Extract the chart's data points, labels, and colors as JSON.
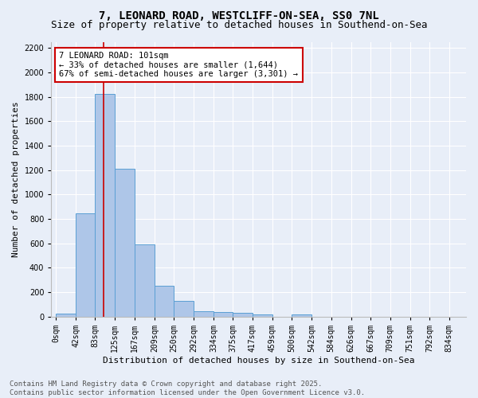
{
  "title_line1": "7, LEONARD ROAD, WESTCLIFF-ON-SEA, SS0 7NL",
  "title_line2": "Size of property relative to detached houses in Southend-on-Sea",
  "xlabel": "Distribution of detached houses by size in Southend-on-Sea",
  "ylabel": "Number of detached properties",
  "bar_labels": [
    "0sqm",
    "42sqm",
    "83sqm",
    "125sqm",
    "167sqm",
    "209sqm",
    "250sqm",
    "292sqm",
    "334sqm",
    "375sqm",
    "417sqm",
    "459sqm",
    "500sqm",
    "542sqm",
    "584sqm",
    "626sqm",
    "667sqm",
    "709sqm",
    "751sqm",
    "792sqm",
    "834sqm"
  ],
  "bar_values": [
    25,
    845,
    1820,
    1210,
    590,
    255,
    130,
    45,
    35,
    28,
    20,
    0,
    15,
    0,
    0,
    0,
    0,
    0,
    0,
    0,
    0
  ],
  "bar_color": "#aec6e8",
  "bar_edge_color": "#5a9fd4",
  "background_color": "#e8eef8",
  "grid_color": "#ffffff",
  "annotation_text": "7 LEONARD ROAD: 101sqm\n← 33% of detached houses are smaller (1,644)\n67% of semi-detached houses are larger (3,301) →",
  "annotation_box_color": "#ffffff",
  "annotation_box_edge_color": "#cc0000",
  "vline_x": 101,
  "vline_color": "#cc0000",
  "bin_edges": [
    0,
    42,
    83,
    125,
    167,
    209,
    250,
    292,
    334,
    375,
    417,
    459,
    500,
    542,
    584,
    626,
    667,
    709,
    751,
    792,
    834
  ],
  "ylim": [
    0,
    2250
  ],
  "yticks": [
    0,
    200,
    400,
    600,
    800,
    1000,
    1200,
    1400,
    1600,
    1800,
    2000,
    2200
  ],
  "footer_text": "Contains HM Land Registry data © Crown copyright and database right 2025.\nContains public sector information licensed under the Open Government Licence v3.0.",
  "title_fontsize": 10,
  "subtitle_fontsize": 9,
  "axis_label_fontsize": 8,
  "tick_fontsize": 7,
  "annotation_fontsize": 7.5,
  "footer_fontsize": 6.5
}
